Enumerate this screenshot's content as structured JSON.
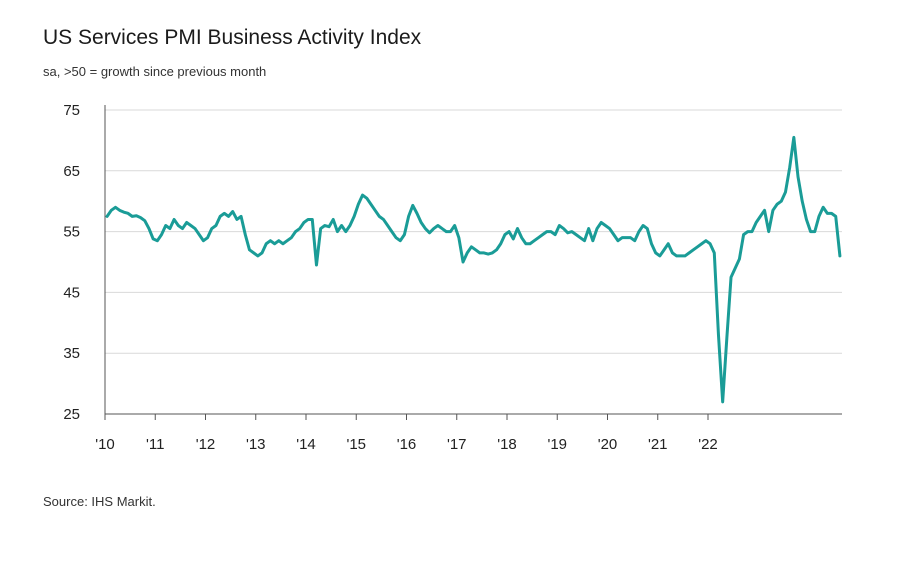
{
  "header": {
    "title": "US Services PMI Business Activity Index",
    "subtitle": "sa, >50 = growth since previous month"
  },
  "footer": {
    "source": "Source: IHS Markit."
  },
  "chart_data": {
    "type": "line",
    "title": "US Services PMI Business Activity Index",
    "subtitle": "sa, >50 = growth since previous month",
    "xlabel": "",
    "ylabel": "",
    "ylim": [
      25,
      75
    ],
    "yticks": [
      25,
      35,
      45,
      55,
      65,
      75
    ],
    "xtick_labels": [
      "'10",
      "'11",
      "'12",
      "'13",
      "'14",
      "'15",
      "'16",
      "'17",
      "'18",
      "'19",
      "'20",
      "'21",
      "'22"
    ],
    "grid": true,
    "line_color": "#1a9c97",
    "series": [
      {
        "name": "",
        "x_start": "2010-01",
        "frequency": "monthly",
        "values": [
          57.5,
          58.5,
          59.0,
          58.5,
          58.2,
          58.0,
          57.5,
          57.6,
          57.3,
          56.8,
          55.5,
          53.8,
          53.5,
          54.5,
          56.0,
          55.5,
          57.0,
          56.0,
          55.5,
          56.5,
          56.0,
          55.5,
          54.5,
          53.5,
          54.0,
          55.5,
          56.0,
          57.5,
          58.0,
          57.5,
          58.3,
          57.0,
          57.5,
          54.5,
          52.0,
          51.5,
          51.0,
          51.5,
          53.0,
          53.5,
          53.0,
          53.5,
          53.0,
          53.5,
          54.0,
          55.0,
          55.5,
          56.5,
          57.0,
          57.0,
          49.5,
          55.5,
          56.0,
          55.8,
          57.0,
          55.0,
          56.0,
          55.0,
          56.0,
          57.5,
          59.5,
          61.0,
          60.5,
          59.5,
          58.5,
          57.5,
          57.0,
          56.0,
          55.0,
          54.0,
          53.5,
          54.5,
          57.5,
          59.3,
          58.0,
          56.5,
          55.5,
          54.8,
          55.5,
          56.0,
          55.5,
          55.0,
          55.0,
          56.0,
          54.0,
          50.0,
          51.5,
          52.5,
          52.0,
          51.5,
          51.5,
          51.3,
          51.5,
          52.0,
          53.0,
          54.5,
          55.0,
          53.8,
          55.5,
          54.0,
          53.0,
          53.0,
          53.5,
          54.0,
          54.5,
          55.0,
          55.0,
          54.5,
          56.0,
          55.5,
          54.8,
          55.0,
          54.5,
          54.0,
          53.5,
          55.5,
          53.5,
          55.5,
          56.5,
          56.0,
          55.5,
          54.5,
          53.5,
          54.0,
          54.0,
          54.0,
          53.5,
          55.0,
          56.0,
          55.5,
          53.0,
          51.5,
          51.0,
          52.0,
          53.0,
          51.5,
          51.0,
          51.0,
          51.0,
          51.5,
          52.0,
          52.5,
          53.0,
          53.5,
          53.0,
          51.5,
          38.0,
          27.0,
          37.5,
          47.5,
          49.0,
          50.5,
          54.5,
          55.0,
          55.0,
          56.5,
          57.5,
          58.5,
          55.0,
          58.5,
          59.5,
          60.0,
          61.5,
          65.5,
          70.5,
          64.0,
          60.0,
          57.0,
          55.0,
          55.0,
          57.5,
          59.0,
          58.0,
          58.0,
          57.5,
          51.0
        ]
      }
    ]
  }
}
